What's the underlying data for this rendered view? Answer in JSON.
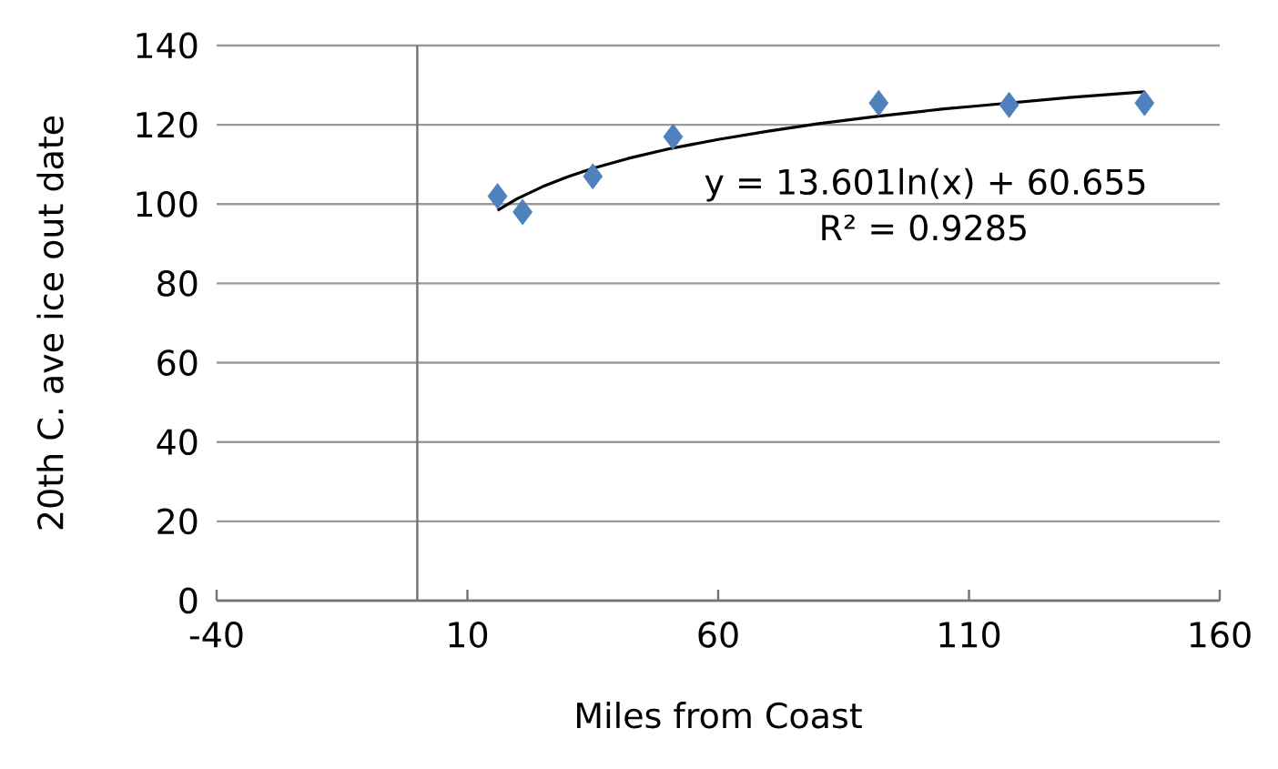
{
  "chart_data": {
    "type": "scatter",
    "xlabel": "Miles from Coast",
    "ylabel": "20th C. ave ice out date",
    "xlim": [
      -40,
      160
    ],
    "xticks": [
      -40,
      10,
      60,
      110,
      160
    ],
    "ylim": [
      0,
      140
    ],
    "yticks": [
      0,
      20,
      40,
      60,
      80,
      100,
      120,
      140
    ],
    "grid": "y",
    "series": [
      {
        "color": "#4f81bd",
        "marker": "diamond",
        "x": [
          16,
          21,
          35,
          51,
          92,
          118,
          145
        ],
        "values": [
          102,
          98,
          107,
          117,
          125.5,
          125,
          125.5
        ]
      },
      {
        "type": "line",
        "color": "#000000",
        "marker": "none",
        "line_style": "solid",
        "x": [
          16,
          20,
          25,
          30,
          35,
          42,
          50,
          60,
          70,
          80,
          92,
          105,
          112,
          130,
          145
        ],
        "values": [
          98.4,
          101.4,
          104.4,
          106.9,
          109.0,
          111.5,
          113.9,
          116.3,
          118.4,
          120.3,
          122.2,
          124.0,
          124.8,
          126.9,
          128.3
        ]
      }
    ],
    "annotations": [
      "y = 13.601ln(x) + 60.655",
      "R² = 0.9285"
    ]
  }
}
